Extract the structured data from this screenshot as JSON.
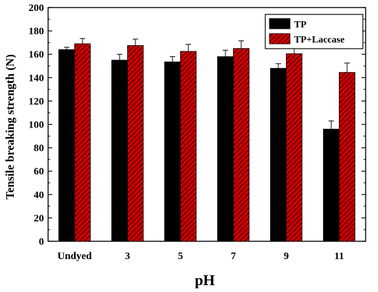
{
  "chart_data": {
    "type": "bar",
    "title": "",
    "xlabel": "pH",
    "ylabel": "Tensile breaking strength (N)",
    "categories": [
      "Undyed",
      "3",
      "5",
      "7",
      "9",
      "11"
    ],
    "ylim": [
      0,
      200
    ],
    "yticks": [
      0,
      20,
      40,
      60,
      80,
      100,
      120,
      140,
      160,
      180,
      200
    ],
    "legend_position": "top-right",
    "grid": false,
    "series": [
      {
        "name": "TP",
        "color": "#000000",
        "pattern": "solid",
        "values": [
          164,
          155,
          153.5,
          158,
          148,
          96
        ],
        "errors": [
          2,
          5,
          4.5,
          5.5,
          4,
          7
        ]
      },
      {
        "name": "TP+Laccase",
        "color": "#cc0000",
        "pattern": "diagonal-hatch",
        "values": [
          169,
          167.5,
          162.5,
          165,
          160.5,
          144.5
        ],
        "errors": [
          4.5,
          5.5,
          6,
          6.5,
          5.5,
          8
        ]
      }
    ]
  }
}
